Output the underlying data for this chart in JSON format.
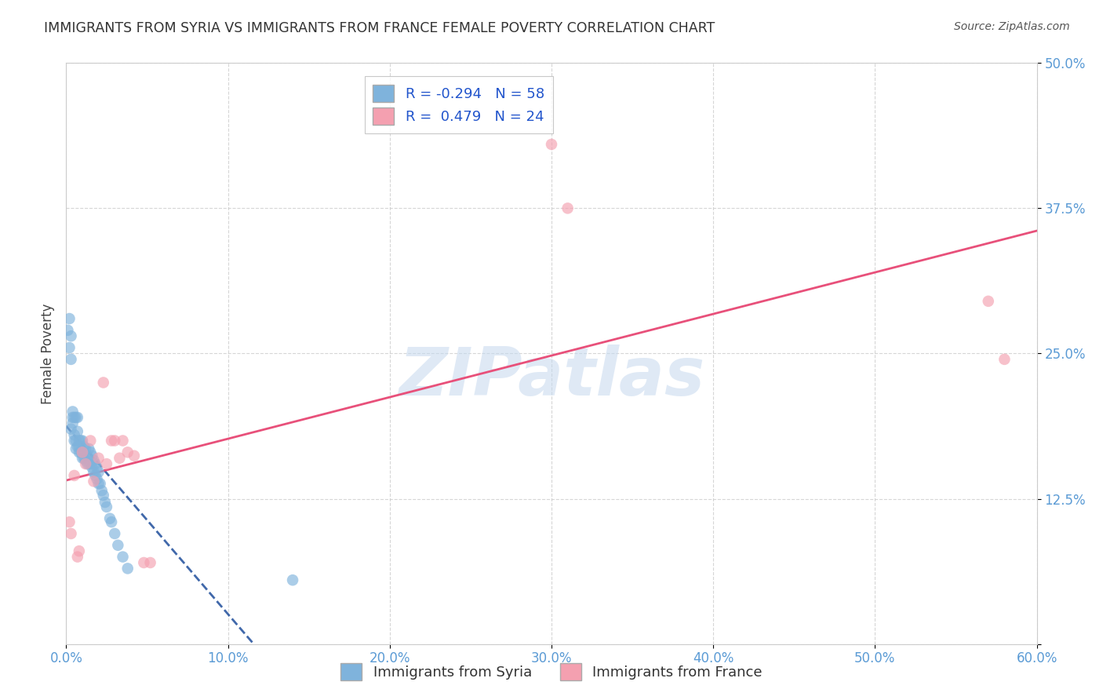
{
  "title": "IMMIGRANTS FROM SYRIA VS IMMIGRANTS FROM FRANCE FEMALE POVERTY CORRELATION CHART",
  "source": "Source: ZipAtlas.com",
  "tick_color": "#5B9BD5",
  "ylabel": "Female Poverty",
  "xlim": [
    0.0,
    0.6
  ],
  "ylim": [
    0.0,
    0.5
  ],
  "xticks": [
    0.0,
    0.1,
    0.2,
    0.3,
    0.4,
    0.5,
    0.6
  ],
  "yticks": [
    0.0,
    0.125,
    0.25,
    0.375,
    0.5
  ],
  "xticklabels": [
    "0.0%",
    "10.0%",
    "20.0%",
    "30.0%",
    "40.0%",
    "50.0%",
    "60.0%"
  ],
  "yticklabels": [
    "",
    "12.5%",
    "25.0%",
    "37.5%",
    "50.0%"
  ],
  "syria_R": -0.294,
  "syria_N": 58,
  "france_R": 0.479,
  "france_N": 24,
  "syria_color": "#7FB3DC",
  "france_color": "#F4A0B0",
  "syria_line_color": "#1F4E9B",
  "france_line_color": "#E8507A",
  "watermark_text": "ZIPatlas",
  "background_color": "#FFFFFF",
  "syria_x": [
    0.001,
    0.002,
    0.002,
    0.003,
    0.003,
    0.003,
    0.004,
    0.004,
    0.004,
    0.005,
    0.005,
    0.005,
    0.006,
    0.006,
    0.006,
    0.007,
    0.007,
    0.007,
    0.008,
    0.008,
    0.008,
    0.009,
    0.009,
    0.01,
    0.01,
    0.01,
    0.011,
    0.011,
    0.012,
    0.012,
    0.013,
    0.013,
    0.014,
    0.014,
    0.015,
    0.015,
    0.016,
    0.016,
    0.017,
    0.017,
    0.018,
    0.018,
    0.019,
    0.019,
    0.02,
    0.02,
    0.021,
    0.022,
    0.023,
    0.024,
    0.025,
    0.027,
    0.028,
    0.03,
    0.032,
    0.035,
    0.038,
    0.14
  ],
  "syria_y": [
    0.27,
    0.28,
    0.255,
    0.265,
    0.245,
    0.185,
    0.2,
    0.195,
    0.19,
    0.195,
    0.18,
    0.175,
    0.195,
    0.175,
    0.168,
    0.195,
    0.183,
    0.17,
    0.175,
    0.17,
    0.165,
    0.175,
    0.165,
    0.165,
    0.175,
    0.16,
    0.17,
    0.16,
    0.168,
    0.158,
    0.162,
    0.155,
    0.168,
    0.155,
    0.165,
    0.155,
    0.162,
    0.152,
    0.158,
    0.148,
    0.155,
    0.145,
    0.152,
    0.142,
    0.148,
    0.138,
    0.138,
    0.132,
    0.128,
    0.122,
    0.118,
    0.108,
    0.105,
    0.095,
    0.085,
    0.075,
    0.065,
    0.055
  ],
  "france_x": [
    0.002,
    0.003,
    0.005,
    0.007,
    0.008,
    0.01,
    0.012,
    0.015,
    0.017,
    0.02,
    0.023,
    0.025,
    0.028,
    0.03,
    0.033,
    0.035,
    0.038,
    0.042,
    0.048,
    0.052,
    0.3,
    0.31,
    0.57,
    0.58
  ],
  "france_y": [
    0.105,
    0.095,
    0.145,
    0.075,
    0.08,
    0.165,
    0.155,
    0.175,
    0.14,
    0.16,
    0.225,
    0.155,
    0.175,
    0.175,
    0.16,
    0.175,
    0.165,
    0.162,
    0.07,
    0.07,
    0.43,
    0.375,
    0.295,
    0.245
  ],
  "legend_label_syria": "R = -0.294   N = 58",
  "legend_label_france": "R =  0.479   N = 24",
  "bottom_label_syria": "Immigrants from Syria",
  "bottom_label_france": "Immigrants from France"
}
